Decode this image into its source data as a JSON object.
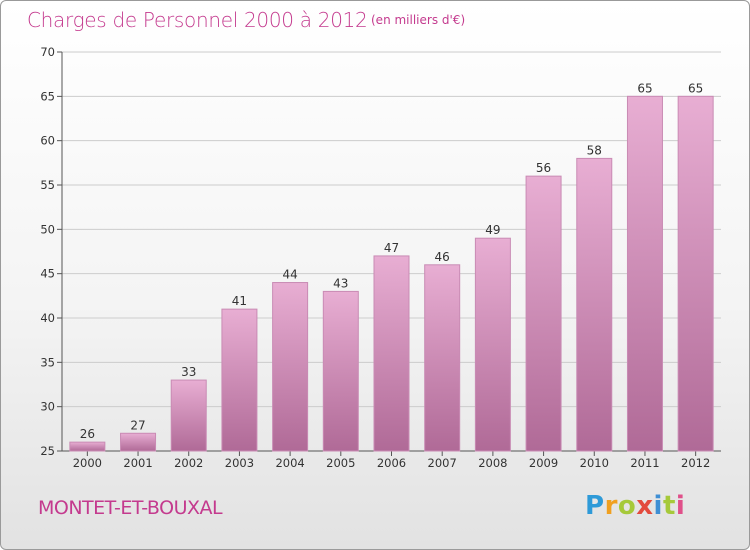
{
  "title": "Charges de Personnel 2000 à 2012",
  "subtitle": "(en milliers d'€)",
  "commune": "MONTET-ET-BOUXAL",
  "brand": {
    "letters": [
      "P",
      "r",
      "o",
      "x",
      "i",
      "t",
      "i"
    ]
  },
  "colors": {
    "accent": "#c43a8e",
    "bar_light": "#e6aad0",
    "bar_dark": "#b36f9a",
    "grid": "#cccccc"
  },
  "chart_data": {
    "type": "bar",
    "categories": [
      "2000",
      "2001",
      "2002",
      "2003",
      "2004",
      "2005",
      "2006",
      "2007",
      "2008",
      "2009",
      "2010",
      "2011",
      "2012"
    ],
    "values": [
      26,
      27,
      33,
      41,
      44,
      43,
      47,
      46,
      49,
      56,
      58,
      65,
      65
    ],
    "ylim": [
      25,
      70
    ],
    "yticks": [
      25,
      30,
      35,
      40,
      45,
      50,
      55,
      60,
      65,
      70
    ],
    "grid": true
  }
}
